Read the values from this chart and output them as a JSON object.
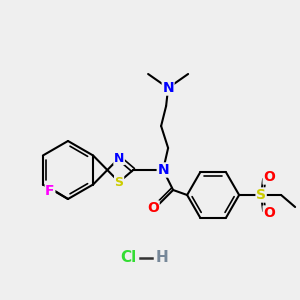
{
  "bg_color": "#efefef",
  "atom_colors": {
    "N": "#0000ff",
    "S": "#cccc00",
    "O": "#ff0000",
    "F": "#ff00ff",
    "C": "#000000"
  },
  "bond_color": "#000000",
  "hcl_color": "#33dd33",
  "h_color": "#778899",
  "dash_color": "#333333",
  "figsize": [
    3.0,
    3.0
  ],
  "dpi": 100
}
